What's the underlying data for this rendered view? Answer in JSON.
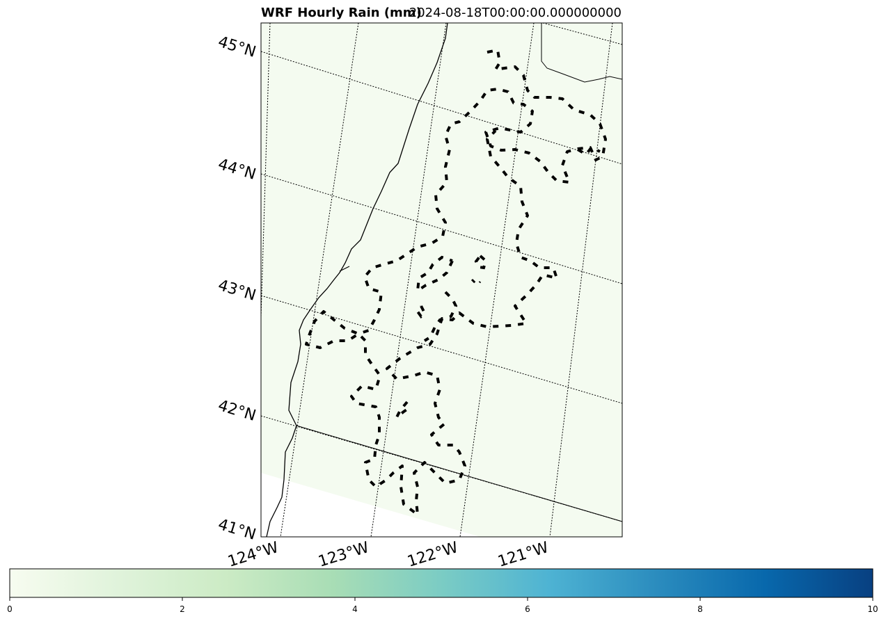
{
  "title": {
    "left": "WRF Hourly Rain (mm)",
    "right": "2024-08-18T00:00:00.000000000"
  },
  "map": {
    "background_color": "#f4fbf0",
    "lat_labels": [
      "45°N",
      "44°N",
      "43°N",
      "42°N",
      "41°N"
    ],
    "lon_labels": [
      "124°W",
      "123°W",
      "122°W",
      "121°W"
    ]
  },
  "colorbar": {
    "colormap": "GnBu",
    "min": 0,
    "max": 10,
    "ticks": [
      "0",
      "2",
      "4",
      "6",
      "8",
      "10"
    ],
    "colors": [
      "#f7fcf0",
      "#e0f3db",
      "#ccebc5",
      "#a8ddb5",
      "#7bccc4",
      "#4eb3d3",
      "#2b8cbe",
      "#0868ac",
      "#084081"
    ]
  }
}
